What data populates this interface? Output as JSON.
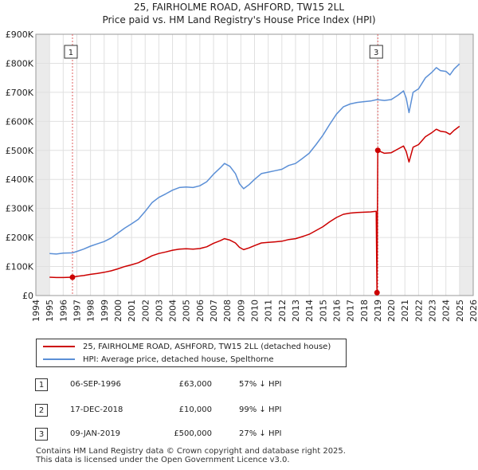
{
  "title": "25, FAIRHOLME ROAD, ASHFORD, TW15 2LL",
  "subtitle": "Price paid vs. HM Land Registry's House Price Index (HPI)",
  "colors": {
    "property": "#cc0000",
    "hpi": "#5b8fd6",
    "shade": "#ebebeb",
    "grid": "#e0e0e0",
    "marker_line": "#e06060"
  },
  "chart_data": {
    "type": "line",
    "title": "25, FAIRHOLME ROAD, ASHFORD, TW15 2LL",
    "subtitle": "Price paid vs. HM Land Registry's House Price Index (HPI)",
    "xlim": [
      1994,
      2026
    ],
    "ylim": [
      0,
      900000
    ],
    "x_ticks": [
      1994,
      1995,
      1996,
      1997,
      1998,
      1999,
      2000,
      2001,
      2002,
      2003,
      2004,
      2005,
      2006,
      2007,
      2008,
      2009,
      2010,
      2011,
      2012,
      2013,
      2014,
      2015,
      2016,
      2017,
      2018,
      2019,
      2020,
      2021,
      2022,
      2023,
      2024,
      2025,
      2026
    ],
    "y_ticks": [
      0,
      100000,
      200000,
      300000,
      400000,
      500000,
      600000,
      700000,
      800000,
      900000
    ],
    "y_tick_labels": [
      "£0",
      "£100K",
      "£200K",
      "£300K",
      "£400K",
      "£500K",
      "£600K",
      "£700K",
      "£800K",
      "£900K"
    ],
    "data_range_shading": {
      "before": 1995.0,
      "after": 2025.0
    },
    "series": [
      {
        "name": "HPI: Average price, detached house, Spelthorne",
        "color": "#5b8fd6",
        "points": [
          [
            1995.0,
            145000
          ],
          [
            1995.5,
            143000
          ],
          [
            1996.0,
            146000
          ],
          [
            1996.68,
            147000
          ],
          [
            1997.0,
            152000
          ],
          [
            1997.5,
            160000
          ],
          [
            1998.0,
            170000
          ],
          [
            1998.5,
            178000
          ],
          [
            1999.0,
            186000
          ],
          [
            1999.5,
            198000
          ],
          [
            2000.0,
            215000
          ],
          [
            2000.5,
            232000
          ],
          [
            2001.0,
            247000
          ],
          [
            2001.5,
            263000
          ],
          [
            2002.0,
            290000
          ],
          [
            2002.5,
            320000
          ],
          [
            2003.0,
            338000
          ],
          [
            2003.5,
            350000
          ],
          [
            2004.0,
            363000
          ],
          [
            2004.5,
            372000
          ],
          [
            2005.0,
            374000
          ],
          [
            2005.5,
            372000
          ],
          [
            2006.0,
            378000
          ],
          [
            2006.5,
            392000
          ],
          [
            2007.0,
            418000
          ],
          [
            2007.5,
            440000
          ],
          [
            2007.8,
            455000
          ],
          [
            2008.2,
            445000
          ],
          [
            2008.6,
            420000
          ],
          [
            2008.9,
            385000
          ],
          [
            2009.2,
            368000
          ],
          [
            2009.6,
            382000
          ],
          [
            2010.0,
            400000
          ],
          [
            2010.5,
            420000
          ],
          [
            2011.0,
            425000
          ],
          [
            2011.5,
            430000
          ],
          [
            2012.0,
            435000
          ],
          [
            2012.5,
            448000
          ],
          [
            2013.0,
            455000
          ],
          [
            2013.5,
            472000
          ],
          [
            2014.0,
            490000
          ],
          [
            2014.5,
            520000
          ],
          [
            2015.0,
            552000
          ],
          [
            2015.5,
            590000
          ],
          [
            2016.0,
            625000
          ],
          [
            2016.5,
            650000
          ],
          [
            2017.0,
            660000
          ],
          [
            2017.5,
            665000
          ],
          [
            2018.0,
            668000
          ],
          [
            2018.5,
            670000
          ],
          [
            2018.96,
            675000
          ],
          [
            2019.5,
            672000
          ],
          [
            2020.0,
            675000
          ],
          [
            2020.5,
            690000
          ],
          [
            2020.9,
            705000
          ],
          [
            2021.1,
            680000
          ],
          [
            2021.3,
            630000
          ],
          [
            2021.6,
            700000
          ],
          [
            2022.0,
            712000
          ],
          [
            2022.5,
            750000
          ],
          [
            2023.0,
            770000
          ],
          [
            2023.3,
            785000
          ],
          [
            2023.6,
            775000
          ],
          [
            2024.0,
            772000
          ],
          [
            2024.3,
            760000
          ],
          [
            2024.6,
            780000
          ],
          [
            2025.0,
            798000
          ]
        ]
      },
      {
        "name": "25, FAIRHOLME ROAD, ASHFORD, TW15 2LL (detached house)",
        "color": "#cc0000",
        "points": [
          [
            1995.0,
            63000
          ],
          [
            1995.5,
            62000
          ],
          [
            1996.0,
            62000
          ],
          [
            1996.68,
            63000
          ],
          [
            1997.0,
            66000
          ],
          [
            1997.5,
            69000
          ],
          [
            1998.0,
            73000
          ],
          [
            1998.5,
            76000
          ],
          [
            1999.0,
            80000
          ],
          [
            1999.5,
            85000
          ],
          [
            2000.0,
            92000
          ],
          [
            2000.5,
            100000
          ],
          [
            2001.0,
            106000
          ],
          [
            2001.5,
            113000
          ],
          [
            2002.0,
            125000
          ],
          [
            2002.5,
            137000
          ],
          [
            2003.0,
            145000
          ],
          [
            2003.5,
            150000
          ],
          [
            2004.0,
            156000
          ],
          [
            2004.5,
            160000
          ],
          [
            2005.0,
            161000
          ],
          [
            2005.5,
            160000
          ],
          [
            2006.0,
            162000
          ],
          [
            2006.5,
            168000
          ],
          [
            2007.0,
            180000
          ],
          [
            2007.5,
            189000
          ],
          [
            2007.8,
            196000
          ],
          [
            2008.2,
            191000
          ],
          [
            2008.6,
            181000
          ],
          [
            2008.9,
            166000
          ],
          [
            2009.2,
            158000
          ],
          [
            2009.6,
            164000
          ],
          [
            2010.0,
            172000
          ],
          [
            2010.5,
            181000
          ],
          [
            2011.0,
            183000
          ],
          [
            2011.5,
            185000
          ],
          [
            2012.0,
            187000
          ],
          [
            2012.5,
            193000
          ],
          [
            2013.0,
            196000
          ],
          [
            2013.5,
            203000
          ],
          [
            2014.0,
            211000
          ],
          [
            2014.5,
            224000
          ],
          [
            2015.0,
            237000
          ],
          [
            2015.5,
            254000
          ],
          [
            2016.0,
            269000
          ],
          [
            2016.5,
            280000
          ],
          [
            2017.0,
            284000
          ],
          [
            2017.5,
            286000
          ],
          [
            2018.0,
            287000
          ],
          [
            2018.5,
            288000
          ],
          [
            2018.9,
            290000
          ],
          [
            2018.96,
            10000
          ],
          [
            2019.02,
            500000
          ],
          [
            2019.5,
            490000
          ],
          [
            2020.0,
            492000
          ],
          [
            2020.5,
            505000
          ],
          [
            2020.9,
            515000
          ],
          [
            2021.1,
            496000
          ],
          [
            2021.3,
            460000
          ],
          [
            2021.6,
            511000
          ],
          [
            2022.0,
            520000
          ],
          [
            2022.5,
            547000
          ],
          [
            2023.0,
            562000
          ],
          [
            2023.3,
            573000
          ],
          [
            2023.6,
            566000
          ],
          [
            2024.0,
            563000
          ],
          [
            2024.3,
            555000
          ],
          [
            2024.6,
            569000
          ],
          [
            2025.0,
            583000
          ]
        ]
      }
    ],
    "sale_points": [
      [
        1996.68,
        63000
      ],
      [
        2018.96,
        10000
      ],
      [
        2019.02,
        500000
      ]
    ],
    "markers": [
      {
        "label": "1",
        "x": 1996.68
      },
      {
        "label": "3",
        "x": 2019.02
      }
    ]
  },
  "legend": {
    "items": [
      {
        "label": "25, FAIRHOLME ROAD, ASHFORD, TW15 2LL (detached house)",
        "color": "#cc0000"
      },
      {
        "label": "HPI: Average price, detached house, Spelthorne",
        "color": "#5b8fd6"
      }
    ]
  },
  "transactions": [
    {
      "num": "1",
      "date": "06-SEP-1996",
      "price": "£63,000",
      "hpi": "57% ↓ HPI"
    },
    {
      "num": "2",
      "date": "17-DEC-2018",
      "price": "£10,000",
      "hpi": "99% ↓ HPI"
    },
    {
      "num": "3",
      "date": "09-JAN-2019",
      "price": "£500,000",
      "hpi": "27% ↓ HPI"
    }
  ],
  "footer": {
    "line1": "Contains HM Land Registry data © Crown copyright and database right 2025.",
    "line2": "This data is licensed under the Open Government Licence v3.0."
  }
}
